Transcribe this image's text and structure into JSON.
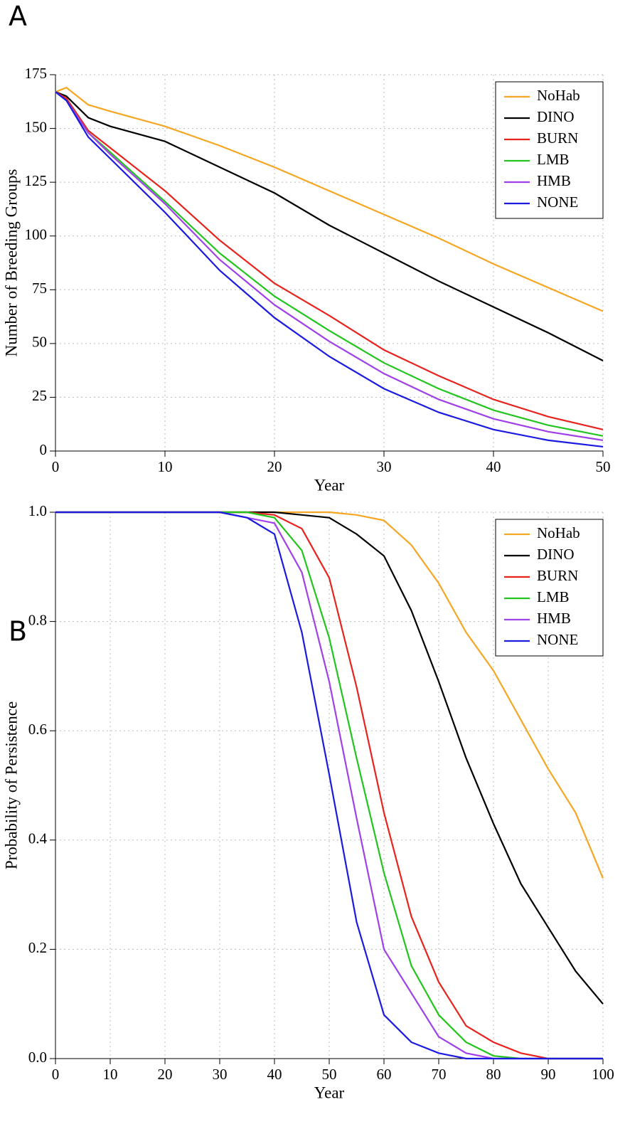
{
  "chart_data": [
    {
      "type": "line",
      "title": "A",
      "x_label": "Year",
      "y_label": "Number of Breeding Groups",
      "x": [
        0,
        1,
        3,
        5,
        10,
        15,
        20,
        25,
        30,
        35,
        40,
        45,
        50
      ],
      "xlim": [
        0,
        50
      ],
      "xticks": [
        0,
        10,
        20,
        30,
        40,
        50
      ],
      "ylim": [
        0,
        175
      ],
      "yticks": [
        0,
        25,
        50,
        75,
        100,
        125,
        150,
        175
      ],
      "grid": true,
      "legend": "top-right",
      "series": [
        {
          "name": "NoHab",
          "color": "#f5a623",
          "values": [
            167,
            169,
            161,
            158,
            151,
            142,
            132,
            121,
            110,
            99,
            87,
            76,
            65
          ]
        },
        {
          "name": "DINO",
          "color": "#000000",
          "values": [
            167,
            165,
            155,
            151,
            144,
            132,
            120,
            105,
            92,
            79,
            67,
            55,
            42
          ]
        },
        {
          "name": "BURN",
          "color": "#e8231e",
          "values": [
            167,
            164,
            149,
            141,
            121,
            98,
            78,
            63,
            47,
            35,
            24,
            16,
            10
          ]
        },
        {
          "name": "LMB",
          "color": "#22c41e",
          "values": [
            167,
            163,
            148,
            139,
            116,
            92,
            72,
            56,
            41,
            29,
            19,
            12,
            7
          ]
        },
        {
          "name": "HMB",
          "color": "#a040e8",
          "values": [
            167,
            163,
            148,
            138,
            115,
            89,
            68,
            51,
            36,
            24,
            15,
            9,
            5
          ]
        },
        {
          "name": "NONE",
          "color": "#1a1ae0",
          "values": [
            167,
            163,
            146,
            136,
            111,
            84,
            62,
            44,
            29,
            18,
            10,
            5,
            2
          ]
        }
      ]
    },
    {
      "type": "line",
      "title": "B",
      "x_label": "Year",
      "y_label": "Probability of Persistence",
      "x": [
        0,
        30,
        35,
        40,
        45,
        50,
        55,
        60,
        65,
        70,
        75,
        80,
        85,
        90,
        95,
        100
      ],
      "xlim": [
        0,
        100
      ],
      "xticks": [
        0,
        10,
        20,
        30,
        40,
        50,
        60,
        70,
        80,
        90,
        100
      ],
      "ylim": [
        0,
        1
      ],
      "yticks": [
        {
          "value": 0,
          "label": "0.0"
        },
        0.2,
        0.4,
        0.6,
        0.8,
        {
          "value": 1,
          "label": "1.0"
        }
      ],
      "grid": true,
      "legend": "top-right",
      "series": [
        {
          "name": "NoHab",
          "color": "#f5a623",
          "values": [
            1,
            1,
            1,
            1,
            1,
            1,
            0.995,
            0.985,
            0.94,
            0.87,
            0.78,
            0.71,
            0.62,
            0.53,
            0.45,
            0.33
          ]
        },
        {
          "name": "DINO",
          "color": "#000000",
          "values": [
            1,
            1,
            1,
            1,
            0.995,
            0.99,
            0.96,
            0.92,
            0.82,
            0.69,
            0.55,
            0.43,
            0.32,
            0.24,
            0.16,
            0.1
          ]
        },
        {
          "name": "BURN",
          "color": "#e8231e",
          "values": [
            1,
            1,
            1,
            0.995,
            0.97,
            0.88,
            0.68,
            0.45,
            0.26,
            0.14,
            0.06,
            0.03,
            0.01,
            0,
            0,
            0
          ]
        },
        {
          "name": "LMB",
          "color": "#22c41e",
          "values": [
            1,
            1,
            1,
            0.99,
            0.93,
            0.77,
            0.55,
            0.34,
            0.17,
            0.08,
            0.03,
            0.005,
            0,
            0,
            0,
            0
          ]
        },
        {
          "name": "HMB",
          "color": "#a040e8",
          "values": [
            1,
            1,
            0.99,
            0.98,
            0.89,
            0.69,
            0.44,
            0.2,
            0.12,
            0.04,
            0.01,
            0,
            0,
            0,
            0,
            0
          ]
        },
        {
          "name": "NONE",
          "color": "#1a1ae0",
          "values": [
            1,
            1,
            0.99,
            0.96,
            0.78,
            0.52,
            0.25,
            0.08,
            0.03,
            0.01,
            0,
            0,
            0,
            0,
            0,
            0
          ]
        }
      ]
    }
  ]
}
